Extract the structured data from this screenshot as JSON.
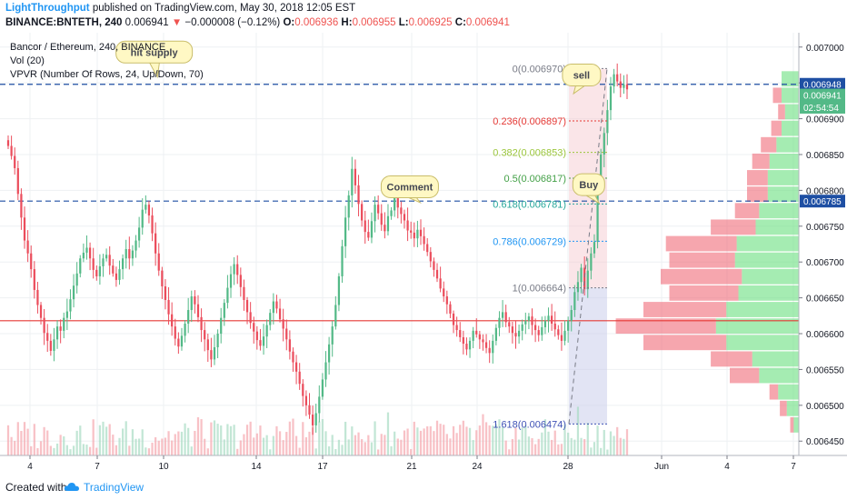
{
  "header": {
    "author": "LightThroughput",
    "published": "published on TradingView.com, May 30, 2018 12:05 EST",
    "symbol": "BINANCE:BNTETH, 240",
    "last": "0.006941",
    "change_arrow": "▼",
    "change": "−0.000008 (−0.12%)",
    "ohlc": [
      {
        "k": "O:",
        "v": "0.006936"
      },
      {
        "k": "H:",
        "v": "0.006955"
      },
      {
        "k": "L:",
        "v": "0.006925"
      },
      {
        "k": "C:",
        "v": "0.006941"
      }
    ]
  },
  "legend": [
    "Bancor / Ethereum, 240, BINANCE",
    "Vol (20)",
    "VPVR (Number Of Rows, 24, Up/Down, 70)"
  ],
  "footer": {
    "created": "Created with",
    "brand": "TradingView",
    "logo_icon": "tradingview-cloud-icon"
  },
  "colors": {
    "up": "#53b987",
    "down": "#eb4d5c",
    "vol_up": "#a8dcc3",
    "vol_down": "#f5a6ae",
    "grid": "#eef0f3",
    "dash": "#1e4fa3",
    "hline": "#e53935"
  },
  "chart_data": {
    "type": "candlestick",
    "x_ticks": [
      "4",
      "7",
      "10",
      "14",
      "17",
      "21",
      "24",
      "28",
      "Jun",
      "4",
      "7"
    ],
    "y_ticks": [
      "0.006450",
      "0.006500",
      "0.006550",
      "0.006600",
      "0.006650",
      "0.006700",
      "0.006750",
      "0.006800",
      "0.006850",
      "0.006900",
      "0.006950",
      "0.007000"
    ],
    "ylim": [
      0.00643,
      0.00702
    ],
    "price_badges": [
      {
        "label": "0.006948",
        "value": 0.006948,
        "bg": "#1e4fa3"
      },
      {
        "label": "0.006941",
        "value": 0.006933,
        "bg": "#53b987"
      },
      {
        "label": "02:54:54",
        "value": 0.006916,
        "bg": "#53b987"
      },
      {
        "label": "0.006785",
        "value": 0.006785,
        "bg": "#1e4fa3"
      }
    ],
    "dashed_levels": [
      0.006948,
      0.006785
    ],
    "red_line": 0.006618,
    "fibonacci": [
      {
        "label": "0(0.006970)",
        "value": 0.00697,
        "color": "#787b86"
      },
      {
        "label": "0.236(0.006897)",
        "value": 0.006897,
        "color": "#e53935"
      },
      {
        "label": "0.382(0.006853)",
        "value": 0.006853,
        "color": "#9bc63b"
      },
      {
        "label": "0.5(0.006817)",
        "value": 0.006817,
        "color": "#43a047"
      },
      {
        "label": "0.618(0.006781)",
        "value": 0.006781,
        "color": "#26a69a"
      },
      {
        "label": "0.786(0.006729)",
        "value": 0.006729,
        "color": "#2196f3"
      },
      {
        "label": "1(0.006664)",
        "value": 0.006664,
        "color": "#787b86"
      },
      {
        "label": "1.618(0.006474)",
        "value": 0.006474,
        "color": "#3f51b5"
      }
    ],
    "annotations": [
      {
        "label": "hit supply",
        "bx": 0.193,
        "value": 0.006993,
        "px": 0.197,
        "pvalue": 0.006958
      },
      {
        "label": "sell",
        "bx": 0.728,
        "value": 0.006961,
        "px": 0.718,
        "pvalue": 0.006935
      },
      {
        "label": "Comment",
        "bx": 0.513,
        "value": 0.006805,
        "px": 0.526,
        "pvalue": 0.006783
      },
      {
        "label": "Buy",
        "bx": 0.737,
        "value": 0.006808,
        "px": 0.75,
        "pvalue": 0.006782
      }
    ],
    "series_close": [
      6862,
      6848,
      6831,
      6795,
      6762,
      6730,
      6712,
      6690,
      6661,
      6640,
      6622,
      6601,
      6590,
      6576,
      6592,
      6610,
      6604,
      6622,
      6631,
      6648,
      6667,
      6684,
      6705,
      6713,
      6720,
      6705,
      6689,
      6680,
      6694,
      6705,
      6710,
      6695,
      6684,
      6675,
      6690,
      6705,
      6718,
      6705,
      6716,
      6730,
      6748,
      6773,
      6780,
      6765,
      6740,
      6712,
      6688,
      6666,
      6647,
      6627,
      6610,
      6593,
      6582,
      6597,
      6614,
      6633,
      6652,
      6641,
      6623,
      6605,
      6592,
      6577,
      6564,
      6581,
      6600,
      6622,
      6643,
      6664,
      6683,
      6697,
      6682,
      6665,
      6647,
      6630,
      6615,
      6603,
      6591,
      6583,
      6596,
      6612,
      6629,
      6645,
      6635,
      6620,
      6607,
      6592,
      6575,
      6560,
      6547,
      6530,
      6513,
      6500,
      6487,
      6472,
      6489,
      6512,
      6536,
      6560,
      6585,
      6610,
      6640,
      6680,
      6722,
      6762,
      6793,
      6830,
      6807,
      6781,
      6758,
      6742,
      6734,
      6757,
      6780,
      6768,
      6752,
      6743,
      6764,
      6772,
      6791,
      6776,
      6767,
      6758,
      6744,
      6741,
      6733,
      6745,
      6736,
      6725,
      6714,
      6701,
      6689,
      6677,
      6663,
      6652,
      6641,
      6628,
      6612,
      6605,
      6595,
      6586,
      6578,
      6590,
      6604,
      6599,
      6592,
      6588,
      6580,
      6573,
      6590,
      6608,
      6622,
      6630,
      6616,
      6610,
      6601,
      6596,
      6604,
      6613,
      6618,
      6624,
      6612,
      6605,
      6598,
      6609,
      6618,
      6625,
      6614,
      6606,
      6598,
      6590,
      6604,
      6618,
      6633,
      6658,
      6672,
      6692,
      6662,
      6688,
      6712,
      6728,
      6812,
      6850,
      6880,
      6912,
      6945,
      6962,
      6952,
      6943,
      6948,
      6941
    ],
    "volume_profile": [
      {
        "price": 0.006955,
        "up": 0.1,
        "down": 0.0
      },
      {
        "price": 0.006932,
        "up": 0.1,
        "down": 0.05
      },
      {
        "price": 0.006909,
        "up": 0.08,
        "down": 0.04
      },
      {
        "price": 0.006886,
        "up": 0.1,
        "down": 0.06
      },
      {
        "price": 0.006863,
        "up": 0.13,
        "down": 0.09
      },
      {
        "price": 0.00684,
        "up": 0.17,
        "down": 0.1
      },
      {
        "price": 0.006817,
        "up": 0.18,
        "down": 0.12
      },
      {
        "price": 0.006794,
        "up": 0.18,
        "down": 0.12
      },
      {
        "price": 0.006771,
        "up": 0.23,
        "down": 0.14
      },
      {
        "price": 0.006748,
        "up": 0.25,
        "down": 0.26
      },
      {
        "price": 0.006725,
        "up": 0.36,
        "down": 0.41
      },
      {
        "price": 0.006702,
        "up": 0.37,
        "down": 0.38
      },
      {
        "price": 0.006679,
        "up": 0.33,
        "down": 0.47
      },
      {
        "price": 0.006656,
        "up": 0.35,
        "down": 0.4
      },
      {
        "price": 0.006633,
        "up": 0.42,
        "down": 0.48
      },
      {
        "price": 0.00661,
        "up": 0.48,
        "down": 0.58
      },
      {
        "price": 0.006587,
        "up": 0.42,
        "down": 0.48
      },
      {
        "price": 0.006564,
        "up": 0.27,
        "down": 0.24
      },
      {
        "price": 0.006541,
        "up": 0.23,
        "down": 0.17
      },
      {
        "price": 0.006518,
        "up": 0.12,
        "down": 0.05
      },
      {
        "price": 0.006495,
        "up": 0.07,
        "down": 0.04
      },
      {
        "price": 0.006472,
        "up": 0.03,
        "down": 0.02
      }
    ]
  }
}
